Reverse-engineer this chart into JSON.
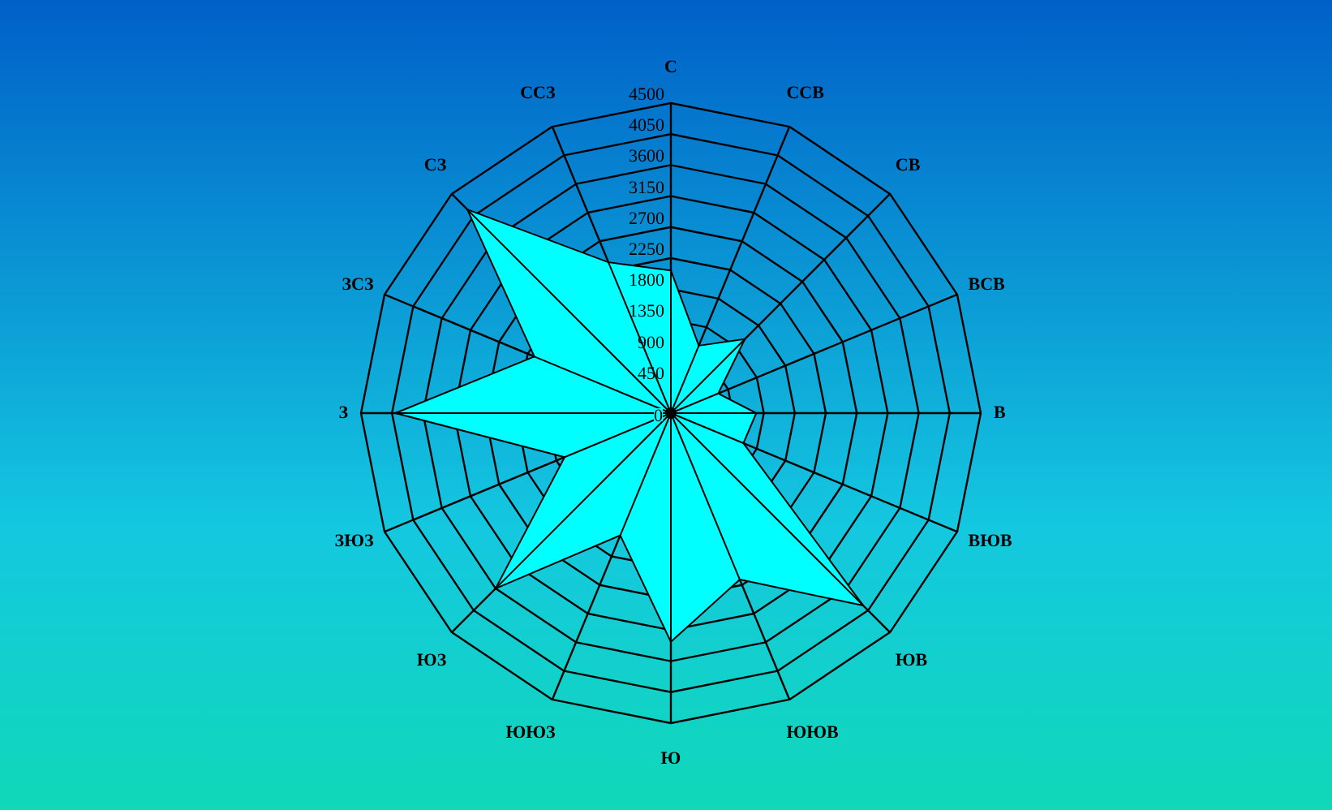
{
  "chart_data": {
    "type": "radar",
    "categories": [
      "С",
      "ССВ",
      "СВ",
      "ВСВ",
      "В",
      "ВЮВ",
      "ЮВ",
      "ЮЮВ",
      "Ю",
      "ЮЮЗ",
      "ЮЗ",
      "ЗЮЗ",
      "З",
      "ЗСЗ",
      "СЗ",
      "ССЗ"
    ],
    "series": [
      {
        "color": "#00ffff",
        "values": [
          2070,
          1060,
          1520,
          745,
          1240,
          1140,
          3950,
          2615,
          3320,
          1920,
          3600,
          1670,
          4000,
          2145,
          4180,
          2370
        ]
      }
    ],
    "ylim": [
      0,
      4500
    ],
    "yticks": [
      0,
      450,
      900,
      1350,
      1800,
      2250,
      2700,
      3150,
      3600,
      4050,
      4500
    ],
    "grid": true
  }
}
